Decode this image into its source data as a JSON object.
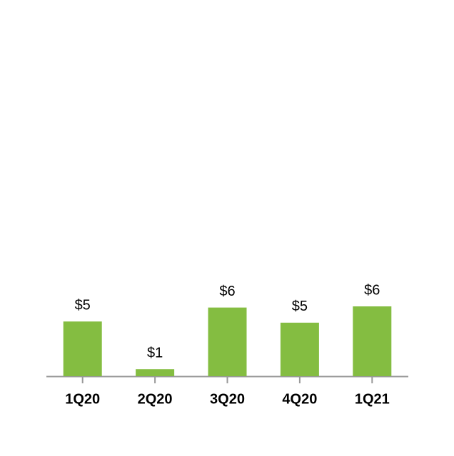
{
  "chart_data": {
    "type": "bar",
    "categories": [
      "1Q20",
      "2Q20",
      "3Q20",
      "4Q20",
      "1Q21"
    ],
    "values": [
      4.7,
      0.6,
      5.9,
      4.6,
      6.0
    ],
    "value_labels": [
      "$5",
      "$1",
      "$6",
      "$5",
      "$6"
    ],
    "color": "#84bd41",
    "ylim": [
      0,
      6
    ]
  }
}
